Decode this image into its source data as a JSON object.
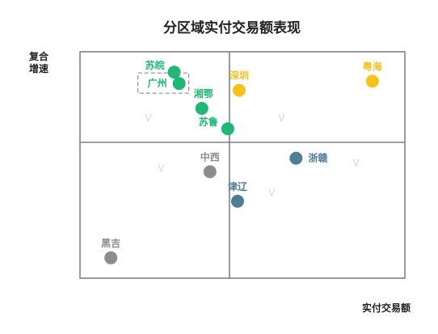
{
  "chart_data": {
    "type": "scatter",
    "title": "分区域实付交易额表现",
    "xlabel": "实付交易额",
    "ylabel": [
      "复合",
      "增速"
    ],
    "grid": "quadrants",
    "xlim": [
      0,
      100
    ],
    "ylim": [
      0,
      100
    ],
    "quadrant_split": {
      "x": 46,
      "y": 60
    },
    "colors": {
      "gold": "#F6C21A",
      "green": "#1DB874",
      "blue": "#4E7D96",
      "gray": "#8C8C8C",
      "axis": "#808080",
      "vmark": "#D7D7D7"
    },
    "points": [
      {
        "label": "苏皖",
        "x": 29.0,
        "y": 91,
        "color": "green",
        "label_pos": "left"
      },
      {
        "label": "广州",
        "x": 30.5,
        "y": 86,
        "color": "green",
        "label_pos": "boxed"
      },
      {
        "label": "湘鄂",
        "x": 37.5,
        "y": 75,
        "color": "green",
        "label_pos": "top-right"
      },
      {
        "label": "苏鲁",
        "x": 45.5,
        "y": 66,
        "color": "green",
        "label_pos": "left"
      },
      {
        "label": "深圳",
        "x": 49.0,
        "y": 83,
        "color": "gold",
        "label_pos": "top"
      },
      {
        "label": "粤海",
        "x": 90.0,
        "y": 87,
        "color": "gold",
        "label_pos": "top"
      },
      {
        "label": "浙赣",
        "x": 66.5,
        "y": 53,
        "color": "blue",
        "label_pos": "right"
      },
      {
        "label": "津辽",
        "x": 48.5,
        "y": 34,
        "color": "blue",
        "label_pos": "top"
      },
      {
        "label": "中西",
        "x": 40.0,
        "y": 47,
        "color": "gray",
        "label_pos": "top"
      },
      {
        "label": "黑吉",
        "x": 9.5,
        "y": 9,
        "color": "gray",
        "label_pos": "top"
      }
    ],
    "v_marks": [
      {
        "label": "V",
        "x": 21.0,
        "y": 71
      },
      {
        "label": "V",
        "x": 62.0,
        "y": 71
      },
      {
        "label": "V",
        "x": 25.0,
        "y": 49
      },
      {
        "label": "V",
        "x": 59.0,
        "y": 38
      },
      {
        "label": "V",
        "x": 85.0,
        "y": 51
      }
    ]
  }
}
